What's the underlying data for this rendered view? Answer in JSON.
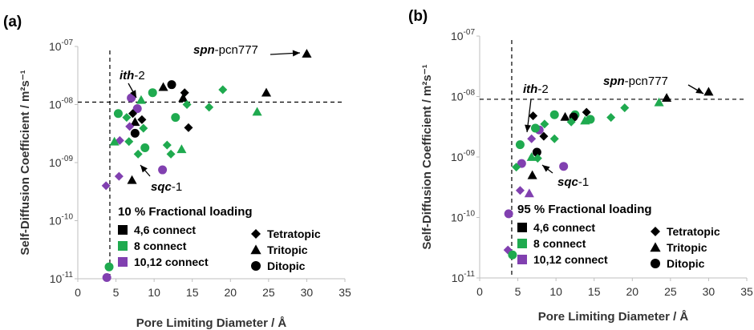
{
  "colors": {
    "black": "#000000",
    "green": "#1faa4f",
    "purple": "#8140b0"
  },
  "chart_data": [
    {
      "panel": "(a)",
      "type": "scatter",
      "xlabel": "Pore Limiting Diameter / Å",
      "ylabel": "Self-Diffusion Coefficient / m²s⁻¹",
      "xlim": [
        0,
        35
      ],
      "ylim_log10": [
        -11,
        -7
      ],
      "x_ticks": [
        "0",
        "5",
        "10",
        "15",
        "20",
        "25",
        "30",
        "35"
      ],
      "y_ticks": [
        {
          "base": "10",
          "exp": "-07"
        },
        {
          "base": "10",
          "exp": "-08"
        },
        {
          "base": "10",
          "exp": "-09"
        },
        {
          "base": "10",
          "exp": "-10"
        },
        {
          "base": "10",
          "exp": "-11"
        }
      ],
      "log_scale_y": true,
      "threshold_x": 4.2,
      "threshold_y": 1.1e-08,
      "legend_title": "10 % Fractional loading",
      "legend_connect": [
        "4,6 connect",
        "8 connect",
        "10,12 connect"
      ],
      "legend_shape": [
        "Tetratopic",
        "Tritopic",
        "Ditopic"
      ],
      "annotations": [
        {
          "bold": "spn",
          "rest": "-pcn777",
          "x": 30,
          "y": 7.5e-08
        },
        {
          "bold": "ith",
          "rest": "-2",
          "x": 7.3,
          "y": 1.3e-08
        },
        {
          "bold": "sqc",
          "rest": "-1",
          "x": 7.0,
          "y": 7.5e-10
        }
      ],
      "points": [
        {
          "x": 30,
          "y": 7.5e-08,
          "shape": "triangle",
          "color": "black"
        },
        {
          "x": 24.7,
          "y": 1.6e-08,
          "shape": "triangle",
          "color": "black"
        },
        {
          "x": 23.5,
          "y": 7.5e-09,
          "shape": "triangle",
          "color": "green"
        },
        {
          "x": 19,
          "y": 1.8e-08,
          "shape": "diamond",
          "color": "green"
        },
        {
          "x": 17.2,
          "y": 9e-09,
          "shape": "diamond",
          "color": "green"
        },
        {
          "x": 12.3,
          "y": 2.2e-08,
          "shape": "circle",
          "color": "black"
        },
        {
          "x": 11.2,
          "y": 2e-08,
          "shape": "triangle",
          "color": "black"
        },
        {
          "x": 14.0,
          "y": 1.6e-08,
          "shape": "diamond",
          "color": "black"
        },
        {
          "x": 13.8,
          "y": 1.3e-08,
          "shape": "triangle",
          "color": "black"
        },
        {
          "x": 14.3,
          "y": 1e-08,
          "shape": "diamond",
          "color": "green"
        },
        {
          "x": 9.8,
          "y": 1.6e-08,
          "shape": "circle",
          "color": "green"
        },
        {
          "x": 8.3,
          "y": 1.2e-08,
          "shape": "triangle",
          "color": "green"
        },
        {
          "x": 7.8,
          "y": 8.5e-09,
          "shape": "circle",
          "color": "purple"
        },
        {
          "x": 7.2,
          "y": 7e-09,
          "shape": "diamond",
          "color": "black"
        },
        {
          "x": 7.0,
          "y": 1.3e-08,
          "shape": "circle",
          "color": "purple"
        },
        {
          "x": 5.3,
          "y": 7e-09,
          "shape": "circle",
          "color": "green"
        },
        {
          "x": 6.4,
          "y": 6e-09,
          "shape": "diamond",
          "color": "green"
        },
        {
          "x": 8.4,
          "y": 5.5e-09,
          "shape": "diamond",
          "color": "black"
        },
        {
          "x": 7.5,
          "y": 5e-09,
          "shape": "triangle",
          "color": "black"
        },
        {
          "x": 6.8,
          "y": 4.2e-09,
          "shape": "diamond",
          "color": "purple"
        },
        {
          "x": 8.6,
          "y": 3.9e-09,
          "shape": "diamond",
          "color": "green"
        },
        {
          "x": 12.8,
          "y": 6e-09,
          "shape": "circle",
          "color": "green"
        },
        {
          "x": 14.5,
          "y": 4e-09,
          "shape": "diamond",
          "color": "black"
        },
        {
          "x": 7.5,
          "y": 3.2e-09,
          "shape": "circle",
          "color": "black"
        },
        {
          "x": 5.5,
          "y": 2.4e-09,
          "shape": "diamond",
          "color": "purple"
        },
        {
          "x": 4.8,
          "y": 2.3e-09,
          "shape": "triangle",
          "color": "green"
        },
        {
          "x": 6.7,
          "y": 2.3e-09,
          "shape": "diamond",
          "color": "green"
        },
        {
          "x": 8.8,
          "y": 1.8e-09,
          "shape": "circle",
          "color": "green"
        },
        {
          "x": 11.7,
          "y": 2e-09,
          "shape": "diamond",
          "color": "green"
        },
        {
          "x": 12.2,
          "y": 1.4e-09,
          "shape": "diamond",
          "color": "green"
        },
        {
          "x": 13.6,
          "y": 1.7e-09,
          "shape": "triangle",
          "color": "green"
        },
        {
          "x": 7.9,
          "y": 1.4e-09,
          "shape": "diamond",
          "color": "green"
        },
        {
          "x": 11.1,
          "y": 7.5e-10,
          "shape": "circle",
          "color": "purple"
        },
        {
          "x": 7.1,
          "y": 5e-10,
          "shape": "triangle",
          "color": "black"
        },
        {
          "x": 5.4,
          "y": 5.8e-10,
          "shape": "diamond",
          "color": "purple"
        },
        {
          "x": 3.7,
          "y": 4e-10,
          "shape": "diamond",
          "color": "purple"
        },
        {
          "x": 4.1,
          "y": 1.6e-11,
          "shape": "circle",
          "color": "green"
        },
        {
          "x": 3.8,
          "y": 1.05e-11,
          "shape": "circle",
          "color": "purple"
        }
      ]
    },
    {
      "panel": "(b)",
      "type": "scatter",
      "xlabel": "Pore Limiting Diameter / Å",
      "ylabel": "Self-Diffusion Coefficient / m²s⁻¹",
      "xlim": [
        0,
        35
      ],
      "ylim_log10": [
        -11,
        -7
      ],
      "x_ticks": [
        "0",
        "5",
        "10",
        "15",
        "20",
        "25",
        "30",
        "35"
      ],
      "y_ticks": [
        {
          "base": "10",
          "exp": "-07"
        },
        {
          "base": "10",
          "exp": "-08"
        },
        {
          "base": "10",
          "exp": "-09"
        },
        {
          "base": "10",
          "exp": "-10"
        },
        {
          "base": "10",
          "exp": "-11"
        }
      ],
      "log_scale_y": true,
      "threshold_x": 4.2,
      "threshold_y": 9e-09,
      "legend_title": "95 % Fractional loading",
      "legend_connect": [
        "4,6 connect",
        "8 connect",
        "10,12 connect"
      ],
      "legend_shape": [
        "Tetratopic",
        "Tritopic",
        "Ditopic"
      ],
      "annotations": [
        {
          "bold": "spn",
          "rest": "-pcn777",
          "x": 30,
          "y": 1.2e-08
        },
        {
          "bold": "ith",
          "rest": "-2",
          "x": 6.8,
          "y": 4.5e-09
        },
        {
          "bold": "sqc",
          "rest": "-1",
          "x": 7.0,
          "y": 7.5e-10
        }
      ],
      "points": [
        {
          "x": 30,
          "y": 1.2e-08,
          "shape": "triangle",
          "color": "black"
        },
        {
          "x": 24.5,
          "y": 9.5e-09,
          "shape": "triangle",
          "color": "black"
        },
        {
          "x": 23.5,
          "y": 8e-09,
          "shape": "triangle",
          "color": "green"
        },
        {
          "x": 19,
          "y": 6.5e-09,
          "shape": "diamond",
          "color": "green"
        },
        {
          "x": 17.2,
          "y": 4.5e-09,
          "shape": "diamond",
          "color": "green"
        },
        {
          "x": 14.0,
          "y": 5.5e-09,
          "shape": "diamond",
          "color": "black"
        },
        {
          "x": 14.5,
          "y": 4.2e-09,
          "shape": "circle",
          "color": "green"
        },
        {
          "x": 13.8,
          "y": 4e-09,
          "shape": "triangle",
          "color": "green"
        },
        {
          "x": 12.5,
          "y": 5e-09,
          "shape": "circle",
          "color": "green"
        },
        {
          "x": 11.2,
          "y": 4.6e-09,
          "shape": "triangle",
          "color": "black"
        },
        {
          "x": 12.3,
          "y": 4.6e-09,
          "shape": "circle",
          "color": "black"
        },
        {
          "x": 12.0,
          "y": 3.8e-09,
          "shape": "diamond",
          "color": "green"
        },
        {
          "x": 9.8,
          "y": 5e-09,
          "shape": "circle",
          "color": "green"
        },
        {
          "x": 8.5,
          "y": 3.5e-09,
          "shape": "diamond",
          "color": "green"
        },
        {
          "x": 7.8,
          "y": 2.8e-09,
          "shape": "circle",
          "color": "purple"
        },
        {
          "x": 7.3,
          "y": 3e-09,
          "shape": "circle",
          "color": "green"
        },
        {
          "x": 7.0,
          "y": 4.8e-09,
          "shape": "diamond",
          "color": "black"
        },
        {
          "x": 8.4,
          "y": 2.2e-09,
          "shape": "diamond",
          "color": "black"
        },
        {
          "x": 6.8,
          "y": 2e-09,
          "shape": "diamond",
          "color": "purple"
        },
        {
          "x": 9.8,
          "y": 2e-09,
          "shape": "diamond",
          "color": "green"
        },
        {
          "x": 5.3,
          "y": 1.6e-09,
          "shape": "circle",
          "color": "green"
        },
        {
          "x": 7.5,
          "y": 1.2e-09,
          "shape": "circle",
          "color": "black"
        },
        {
          "x": 6.8,
          "y": 1e-09,
          "shape": "triangle",
          "color": "green"
        },
        {
          "x": 7.6,
          "y": 9.5e-10,
          "shape": "diamond",
          "color": "green"
        },
        {
          "x": 5.5,
          "y": 7.8e-10,
          "shape": "circle",
          "color": "purple"
        },
        {
          "x": 4.8,
          "y": 6.8e-10,
          "shape": "diamond",
          "color": "green"
        },
        {
          "x": 11.0,
          "y": 7e-10,
          "shape": "circle",
          "color": "purple"
        },
        {
          "x": 6.9,
          "y": 5e-10,
          "shape": "triangle",
          "color": "black"
        },
        {
          "x": 5.3,
          "y": 2.8e-10,
          "shape": "diamond",
          "color": "purple"
        },
        {
          "x": 6.5,
          "y": 2.5e-10,
          "shape": "triangle",
          "color": "purple"
        },
        {
          "x": 3.8,
          "y": 1.15e-10,
          "shape": "circle",
          "color": "purple"
        },
        {
          "x": 3.7,
          "y": 2.9e-11,
          "shape": "diamond",
          "color": "purple"
        },
        {
          "x": 4.3,
          "y": 2.4e-11,
          "shape": "circle",
          "color": "green"
        }
      ]
    }
  ]
}
